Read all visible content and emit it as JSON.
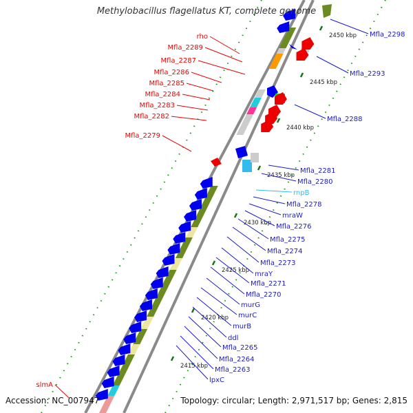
{
  "header": {
    "title": "Methylobacillus flagellatus KT, complete genome"
  },
  "footer": {
    "accession": "Accession: NC_007947",
    "summary": "Topology: circular; Length: 2,971,517 bp; Genes: 2,815"
  },
  "colors": {
    "forward_label": "#ee0000",
    "reverse_label": "#1a1acc",
    "rna_label": "#33bbee",
    "cds_forward": "#ee0000",
    "cds_reverse": "#0000ee",
    "cog_green": "#6b8a1f",
    "cog_khaki": "#eee5a0",
    "tick": "#117711"
  },
  "ticks": [
    {
      "label": "2450 kbp"
    },
    {
      "label": "2445 kbp"
    },
    {
      "label": "2440 kbp"
    },
    {
      "label": "2435 kbp"
    },
    {
      "label": "2430 kbp"
    },
    {
      "label": "2425 kbp"
    },
    {
      "label": "2420 kbp"
    },
    {
      "label": "2415 kbp"
    }
  ],
  "left_labels": [
    {
      "text": "rho"
    },
    {
      "text": "Mfla_2289"
    },
    {
      "text": "Mfla_2287"
    },
    {
      "text": "Mfla_2286"
    },
    {
      "text": "Mfla_2285"
    },
    {
      "text": "Mfla_2284"
    },
    {
      "text": "Mfla_2283"
    },
    {
      "text": "Mfla_2282"
    },
    {
      "text": "Mfla_2279"
    },
    {
      "text": "slmA"
    }
  ],
  "right_labels": [
    {
      "text": "Mfla_2298"
    },
    {
      "text": "Mfla_2293"
    },
    {
      "text": "Mfla_2288"
    },
    {
      "text": "Mfla_2281"
    },
    {
      "text": "Mfla_2280"
    },
    {
      "text": "rnpB"
    },
    {
      "text": "Mfla_2278"
    },
    {
      "text": "mraW"
    },
    {
      "text": "Mfla_2276"
    },
    {
      "text": "Mfla_2275"
    },
    {
      "text": "Mfla_2274"
    },
    {
      "text": "Mfla_2273"
    },
    {
      "text": "mraY"
    },
    {
      "text": "Mfla_2271"
    },
    {
      "text": "Mfla_2270"
    },
    {
      "text": "murG"
    },
    {
      "text": "murC"
    },
    {
      "text": "murB"
    },
    {
      "text": "ddl"
    },
    {
      "text": "Mfla_2265"
    },
    {
      "text": "Mfla_2264"
    },
    {
      "text": "Mfla_2263"
    },
    {
      "text": "lpxC"
    }
  ]
}
